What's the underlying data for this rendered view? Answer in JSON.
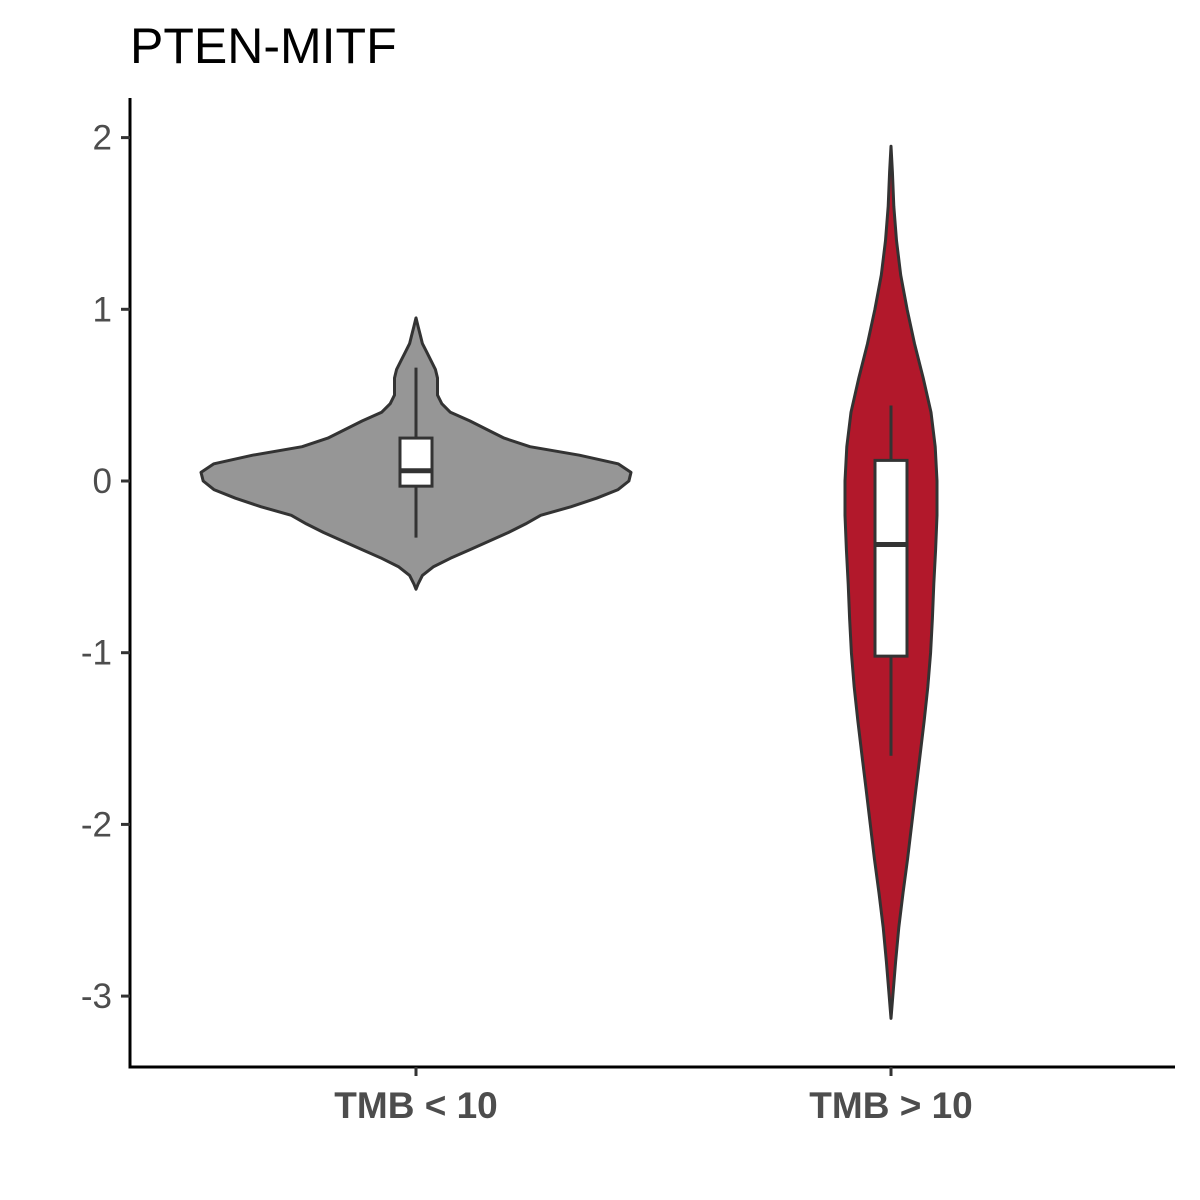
{
  "chart_data": {
    "type": "violin",
    "title": "PTEN-MITF",
    "xlabel": "",
    "ylabel": "",
    "categories": [
      "TMB < 10",
      "TMB > 10"
    ],
    "ylim": [
      -3.4,
      2.25
    ],
    "yticks": [
      2,
      1,
      0,
      -1,
      -2,
      -3
    ],
    "ytick_labels": [
      "2",
      "1",
      "0",
      "-1",
      "-2",
      "-3"
    ],
    "grid": false,
    "legend": "none",
    "groups": [
      {
        "label": "TMB < 10",
        "fill": "#969696",
        "box": {
          "whisker_low": -0.33,
          "q1": -0.03,
          "median": 0.06,
          "q3": 0.25,
          "whisker_high": 0.66
        },
        "density": [
          [
            -0.63,
            0.0
          ],
          [
            -0.6,
            0.01
          ],
          [
            -0.55,
            0.03
          ],
          [
            -0.5,
            0.08
          ],
          [
            -0.45,
            0.16
          ],
          [
            -0.4,
            0.25
          ],
          [
            -0.35,
            0.34
          ],
          [
            -0.3,
            0.43
          ],
          [
            -0.25,
            0.51
          ],
          [
            -0.2,
            0.58
          ],
          [
            -0.15,
            0.72
          ],
          [
            -0.1,
            0.84
          ],
          [
            -0.05,
            0.94
          ],
          [
            0.0,
            0.99
          ],
          [
            0.05,
            1.0
          ],
          [
            0.1,
            0.94
          ],
          [
            0.15,
            0.76
          ],
          [
            0.2,
            0.53
          ],
          [
            0.25,
            0.41
          ],
          [
            0.3,
            0.33
          ],
          [
            0.35,
            0.25
          ],
          [
            0.4,
            0.16
          ],
          [
            0.45,
            0.12
          ],
          [
            0.5,
            0.1
          ],
          [
            0.55,
            0.1
          ],
          [
            0.6,
            0.1
          ],
          [
            0.65,
            0.09
          ],
          [
            0.7,
            0.07
          ],
          [
            0.75,
            0.05
          ],
          [
            0.8,
            0.03
          ],
          [
            0.85,
            0.02
          ],
          [
            0.9,
            0.01
          ],
          [
            0.95,
            0.0
          ]
        ]
      },
      {
        "label": "TMB > 10",
        "fill": "#b2182b",
        "box": {
          "whisker_low": -1.6,
          "q1": -1.02,
          "median": -0.37,
          "q3": 0.12,
          "whisker_high": 0.44
        },
        "density": [
          [
            -3.13,
            0.0
          ],
          [
            -3.0,
            0.04
          ],
          [
            -2.8,
            0.1
          ],
          [
            -2.6,
            0.17
          ],
          [
            -2.4,
            0.26
          ],
          [
            -2.2,
            0.36
          ],
          [
            -2.0,
            0.45
          ],
          [
            -1.8,
            0.54
          ],
          [
            -1.6,
            0.63
          ],
          [
            -1.4,
            0.72
          ],
          [
            -1.2,
            0.8
          ],
          [
            -1.0,
            0.86
          ],
          [
            -0.8,
            0.9
          ],
          [
            -0.6,
            0.93
          ],
          [
            -0.4,
            0.97
          ],
          [
            -0.2,
            1.0
          ],
          [
            0.0,
            1.0
          ],
          [
            0.2,
            0.96
          ],
          [
            0.4,
            0.87
          ],
          [
            0.6,
            0.7
          ],
          [
            0.8,
            0.51
          ],
          [
            1.0,
            0.35
          ],
          [
            1.2,
            0.21
          ],
          [
            1.4,
            0.12
          ],
          [
            1.6,
            0.06
          ],
          [
            1.8,
            0.03
          ],
          [
            1.95,
            0.0
          ]
        ]
      }
    ]
  }
}
